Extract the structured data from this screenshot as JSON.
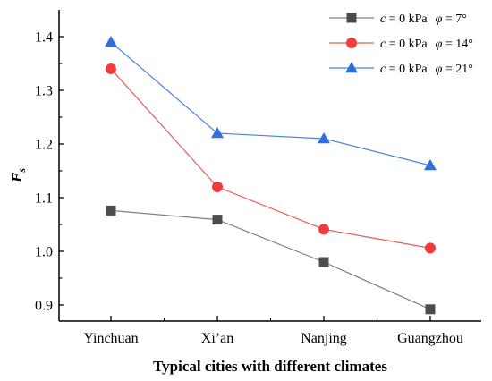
{
  "chart_data": {
    "type": "line",
    "xlabel": "Typical cities with different climates",
    "ylabel": "Fs",
    "ylabel_main": "F",
    "ylabel_sub": "s",
    "categories": [
      "Yinchuan",
      "Xi’an",
      "Nanjing",
      "Guangzhou"
    ],
    "ylim": [
      0.87,
      1.45
    ],
    "yticks": [
      "0.9",
      "1.0",
      "1.1",
      "1.2",
      "1.3",
      "1.4"
    ],
    "legend_position": "top-right",
    "grid": false,
    "series": [
      {
        "name": "c = 0 kPa   φ = 7°",
        "c_label": "c",
        "c_value": " = 0 kPa",
        "phi_label": "φ",
        "phi_value": " = 7°",
        "marker": "square",
        "color": "#808080",
        "markerColor": "#4d4d4d",
        "values": [
          1.076,
          1.059,
          0.98,
          0.892
        ]
      },
      {
        "name": "c = 0 kPa   φ = 14°",
        "c_label": "c",
        "c_value": " = 0 kPa",
        "phi_label": "φ",
        "phi_value": " = 14°",
        "marker": "circle",
        "color": "#e35d5d",
        "markerColor": "#f03c3c",
        "values": [
          1.34,
          1.12,
          1.041,
          1.006
        ]
      },
      {
        "name": "c = 0 kPa   φ = 21°",
        "c_label": "c",
        "c_value": " = 0 kPa",
        "phi_label": "φ",
        "phi_value": " = 21°",
        "marker": "triangle",
        "color": "#4a86d8",
        "markerColor": "#2f6fe0",
        "values": [
          1.39,
          1.22,
          1.21,
          1.16
        ]
      }
    ]
  }
}
